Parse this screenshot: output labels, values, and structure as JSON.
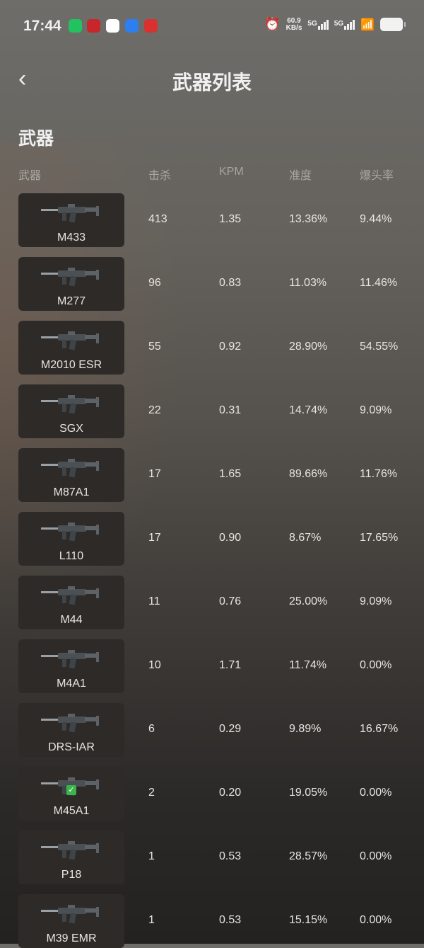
{
  "status_bar": {
    "time": "17:44",
    "net_speed": "60.9",
    "net_unit": "KB/s",
    "sim1": "5G",
    "sim2": "5G",
    "app_icon_colors": [
      "#22c35e",
      "#c8262a",
      "#ffffff",
      "#2d7ff0",
      "#d9312f"
    ]
  },
  "header": {
    "title": "武器列表",
    "back_icon": "chevron-left-icon"
  },
  "section_title": "武器",
  "columns": [
    "武器",
    "击杀",
    "KPM",
    "准度",
    "爆头率"
  ],
  "weapons": [
    {
      "name": "M433",
      "kills": "413",
      "kpm": "1.35",
      "accuracy": "13.36%",
      "headshot": "9.44%"
    },
    {
      "name": "M277",
      "kills": "96",
      "kpm": "0.83",
      "accuracy": "11.03%",
      "headshot": "11.46%"
    },
    {
      "name": "M2010 ESR",
      "kills": "55",
      "kpm": "0.92",
      "accuracy": "28.90%",
      "headshot": "54.55%"
    },
    {
      "name": "SGX",
      "kills": "22",
      "kpm": "0.31",
      "accuracy": "14.74%",
      "headshot": "9.09%"
    },
    {
      "name": "M87A1",
      "kills": "17",
      "kpm": "1.65",
      "accuracy": "89.66%",
      "headshot": "11.76%"
    },
    {
      "name": "L110",
      "kills": "17",
      "kpm": "0.90",
      "accuracy": "8.67%",
      "headshot": "17.65%"
    },
    {
      "name": "M44",
      "kills": "11",
      "kpm": "0.76",
      "accuracy": "25.00%",
      "headshot": "9.09%"
    },
    {
      "name": "M4A1",
      "kills": "10",
      "kpm": "1.71",
      "accuracy": "11.74%",
      "headshot": "0.00%"
    },
    {
      "name": "DRS-IAR",
      "kills": "6",
      "kpm": "0.29",
      "accuracy": "9.89%",
      "headshot": "16.67%"
    },
    {
      "name": "M45A1",
      "kills": "2",
      "kpm": "0.20",
      "accuracy": "19.05%",
      "headshot": "0.00%",
      "equipped": true
    },
    {
      "name": "P18",
      "kills": "1",
      "kpm": "0.53",
      "accuracy": "28.57%",
      "headshot": "0.00%"
    },
    {
      "name": "M39 EMR",
      "kills": "1",
      "kpm": "0.53",
      "accuracy": "15.15%",
      "headshot": "0.00%"
    }
  ]
}
